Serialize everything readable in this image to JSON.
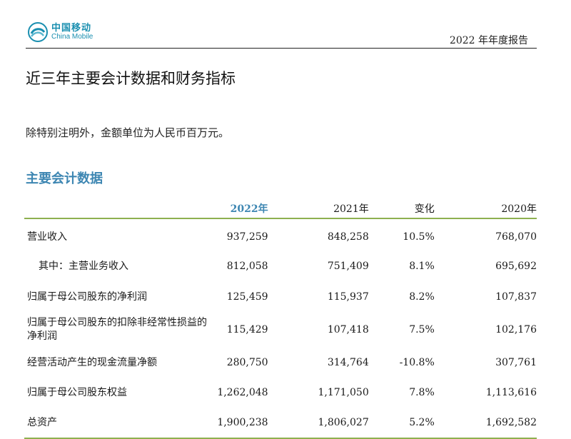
{
  "header": {
    "logo_cn": "中国移动",
    "logo_en": "China Mobile",
    "report_title": "2022 年年度报告",
    "brand_color": "#1a8fb0"
  },
  "page_heading": "近三年主要会计数据和财务指标",
  "note": "除特别注明外，金额单位为人民币百万元。",
  "section_heading": "主要会计数据",
  "table": {
    "columns": [
      "",
      "2022年",
      "2021年",
      "变化",
      "2020年"
    ],
    "rows": [
      {
        "label": "营业收入",
        "y2022": "937,259",
        "y2021": "848,258",
        "change": "10.5%",
        "y2020": "768,070"
      },
      {
        "label": "其中：主营业务收入",
        "y2022": "812,058",
        "y2021": "751,409",
        "change": "8.1%",
        "y2020": "695,692"
      },
      {
        "label": "归属于母公司股东的净利润",
        "y2022": "125,459",
        "y2021": "115,937",
        "change": "8.2%",
        "y2020": "107,837"
      },
      {
        "label": "归属于母公司股东的扣除非经常性损益的净利润",
        "y2022": "115,429",
        "y2021": "107,418",
        "change": "7.5%",
        "y2020": "102,176"
      },
      {
        "label": "经营活动产生的现金流量净额",
        "y2022": "280,750",
        "y2021": "314,764",
        "change": "-10.8%",
        "y2020": "307,761"
      },
      {
        "label": "归属于母公司股东权益",
        "y2022": "1,262,048",
        "y2021": "1,171,050",
        "change": "7.8%",
        "y2020": "1,113,616"
      },
      {
        "label": "总资产",
        "y2022": "1,900,238",
        "y2021": "1,806,027",
        "change": "5.2%",
        "y2020": "1,692,582"
      }
    ]
  },
  "colors": {
    "accent_blue": "#3d86b2",
    "rule_green": "#8db04f"
  }
}
